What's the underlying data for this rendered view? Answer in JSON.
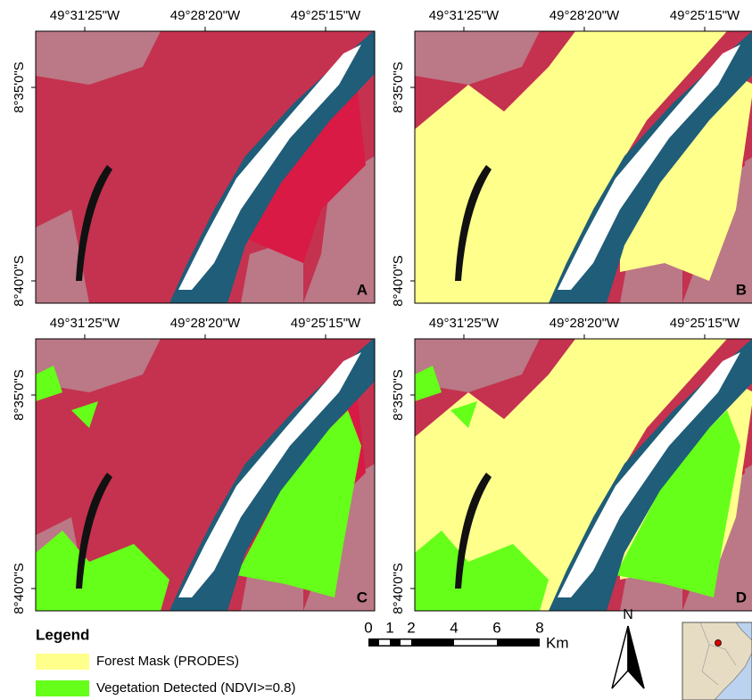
{
  "panels": [
    {
      "label": "A",
      "x_labels": [
        "49°31'25\"W",
        "49°28'20\"W",
        "49°25'15\"W"
      ],
      "y_labels": [
        "8°35'0\"S",
        "8°40'0\"S"
      ]
    },
    {
      "label": "B",
      "x_labels": [
        "49°31'25\"W",
        "49°28'20\"W",
        "49°25'15\"W"
      ],
      "y_labels": [
        "8°35'0\"S",
        "8°40'0\"S"
      ]
    },
    {
      "label": "C",
      "x_labels": [
        "49°31'25\"W",
        "49°28'20\"W",
        "49°25'15\"W"
      ],
      "y_labels": [
        "8°35'0\"S",
        "8°40'0\"S"
      ]
    },
    {
      "label": "D",
      "x_labels": [
        "49°31'25\"W",
        "49°28'20\"W",
        "49°25'15\"W"
      ],
      "y_labels": [
        "8°35'0\"S",
        "8°40'0\"S"
      ]
    }
  ],
  "legend": {
    "title": "Legend",
    "items": [
      {
        "label": "Forest Mask (PRODES)",
        "color": "#ffff8c"
      },
      {
        "label": "Vegetation Detected (NDVI>=0.8)",
        "color": "#66ff1a"
      }
    ]
  },
  "scale_bar": {
    "ticks": [
      "0",
      "1",
      "2",
      "4",
      "6",
      "8"
    ],
    "unit": "Km"
  },
  "north": "N"
}
